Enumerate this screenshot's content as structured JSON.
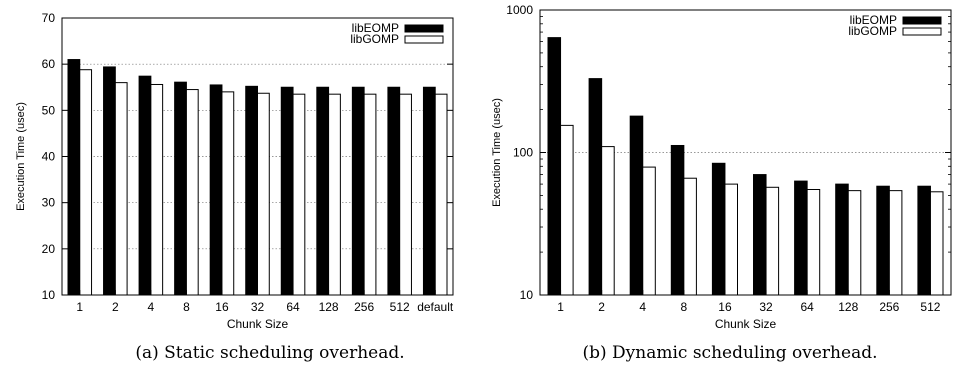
{
  "chart_data": [
    {
      "type": "bar",
      "categories": [
        "1",
        "2",
        "4",
        "8",
        "16",
        "32",
        "64",
        "128",
        "256",
        "512",
        "default"
      ],
      "series": [
        {
          "name": "libEOMP",
          "values": [
            61.0,
            59.4,
            57.4,
            56.1,
            55.5,
            55.2,
            55.0,
            55.0,
            55.0,
            55.0,
            55.0
          ]
        },
        {
          "name": "libGOMP",
          "values": [
            58.8,
            56.0,
            55.6,
            54.5,
            54.0,
            53.7,
            53.5,
            53.5,
            53.5,
            53.5,
            53.5
          ]
        }
      ],
      "xlabel": "Chunk Size",
      "ylabel": "Execution Time (usec)",
      "ylim": [
        10,
        70
      ],
      "yticks": [
        "10",
        "20",
        "30",
        "40",
        "50",
        "60",
        "70"
      ],
      "yscale": "linear",
      "grid": true,
      "legend": "top-right",
      "colors": {
        "libEOMP": "#000000",
        "libGOMP": "#ffffff"
      }
    },
    {
      "type": "bar",
      "categories": [
        "1",
        "2",
        "4",
        "8",
        "16",
        "32",
        "64",
        "128",
        "256",
        "512"
      ],
      "series": [
        {
          "name": "libEOMP",
          "values": [
            640,
            330,
            180,
            112,
            84,
            70,
            63,
            60,
            58,
            58
          ]
        },
        {
          "name": "libGOMP",
          "values": [
            155,
            110,
            79,
            66,
            60,
            57,
            55,
            54,
            54,
            53
          ]
        }
      ],
      "xlabel": "Chunk Size",
      "ylabel": "Execution Time (usec)",
      "ylim": [
        10,
        1000
      ],
      "yticks": [
        "10",
        "100",
        "1000"
      ],
      "yscale": "log",
      "grid": true,
      "legend": "top-right",
      "colors": {
        "libEOMP": "#000000",
        "libGOMP": "#ffffff"
      }
    }
  ],
  "captions": {
    "a": "(a) Static scheduling overhead.",
    "b": "(b) Dynamic scheduling overhead."
  }
}
